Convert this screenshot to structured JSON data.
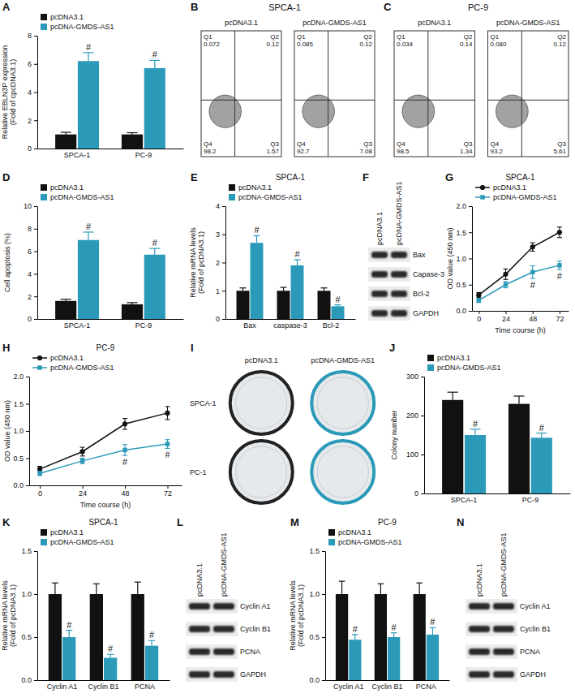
{
  "chart_data": [
    {
      "panel_label": "A",
      "type": "bar",
      "y_label": [
        "Relative EBLN3P expression",
        "(Fold of cpcDNA3.1)"
      ],
      "categories": [
        "SPCA-1",
        "PC-9"
      ],
      "series": [
        {
          "name": "pcDNA3.1",
          "color": "#111111",
          "values": [
            1.0,
            1.0
          ],
          "errors": [
            0.15,
            0.12
          ]
        },
        {
          "name": "pcDNA-GMDS-AS1",
          "color": "#2b9ab8",
          "values": [
            6.2,
            5.7
          ],
          "errors": [
            0.6,
            0.55
          ],
          "annotations": [
            "#",
            "#"
          ]
        }
      ],
      "ylim": [
        0,
        8
      ],
      "yticks": [
        0,
        2,
        4,
        6,
        8
      ],
      "legend": "top"
    },
    {
      "panel_label": "B",
      "type": "flow_cytometry",
      "title": "SPCA-1",
      "plots": [
        {
          "title": "pcDNA3.1",
          "quadrants": [
            {
              "name": "Q1",
              "value": 0.072
            },
            {
              "name": "Q2",
              "value": 0.12
            },
            {
              "name": "Q3",
              "value": 1.57
            },
            {
              "name": "Q4",
              "value": 98.2
            }
          ]
        },
        {
          "title": "pcDNA-GMDS-AS1",
          "quadrants": [
            {
              "name": "Q1",
              "value": 0.085
            },
            {
              "name": "Q2",
              "value": 0.12
            },
            {
              "name": "Q3",
              "value": 7.08
            },
            {
              "name": "Q4",
              "value": 92.7
            }
          ]
        }
      ]
    },
    {
      "panel_label": "C",
      "type": "flow_cytometry",
      "title": "PC-9",
      "plots": [
        {
          "title": "pcDNA3.1",
          "quadrants": [
            {
              "name": "Q1",
              "value": 0.034
            },
            {
              "name": "Q2",
              "value": 0.14
            },
            {
              "name": "Q3",
              "value": 1.34
            },
            {
              "name": "Q4",
              "value": 98.5
            }
          ]
        },
        {
          "title": "pcDNA-GMDS-AS1",
          "quadrants": [
            {
              "name": "Q1",
              "value": 0.08,
              "label": "0.080"
            },
            {
              "name": "Q2",
              "value": 0.12
            },
            {
              "name": "Q3",
              "value": 5.61
            },
            {
              "name": "Q4",
              "value": 93.2
            }
          ]
        }
      ]
    },
    {
      "panel_label": "D",
      "type": "bar",
      "y_label": [
        "Cell apoptosis (%)"
      ],
      "categories": [
        "SPCA-1",
        "PC-9"
      ],
      "series": [
        {
          "name": "pcDNA3.1",
          "color": "#111111",
          "values": [
            1.6,
            1.3
          ],
          "errors": [
            0.15,
            0.15
          ]
        },
        {
          "name": "pcDNA-GMDS-AS1",
          "color": "#2b9ab8",
          "values": [
            7.0,
            5.7
          ],
          "errors": [
            0.7,
            0.55
          ],
          "annotations": [
            "#",
            "#"
          ]
        }
      ],
      "ylim": [
        0,
        10
      ],
      "yticks": [
        0,
        2,
        4,
        6,
        8,
        10
      ],
      "legend": "top"
    },
    {
      "panel_label": "E",
      "type": "bar",
      "title": "SPCA-1",
      "y_label": [
        "Relative mRNA levels",
        "(Fold of pcDNA3.1)"
      ],
      "categories": [
        "Bax",
        "caspase-3",
        "Bcl-2"
      ],
      "series": [
        {
          "name": "pcDNA3.1",
          "color": "#111111",
          "values": [
            1.0,
            1.0,
            1.0
          ],
          "errors": [
            0.1,
            0.12,
            0.1
          ]
        },
        {
          "name": "pcDNA-GMDS-AS1",
          "color": "#2b9ab8",
          "values": [
            2.7,
            1.9,
            0.45
          ],
          "errors": [
            0.25,
            0.2,
            0.05
          ],
          "annotations": [
            "#",
            "#",
            "#"
          ]
        }
      ],
      "ylim": [
        0,
        4
      ],
      "yticks": [
        0,
        1,
        2,
        3,
        4
      ],
      "legend": "top"
    },
    {
      "panel_label": "F",
      "type": "blot",
      "lanes": [
        "pcDNA3.1",
        "pcDNA-GMDS-AS1"
      ],
      "rows": [
        "Bax",
        "Capase-3",
        "Bcl-2",
        "GAPDH"
      ]
    },
    {
      "panel_label": "G",
      "type": "line",
      "title": "SPCA-1",
      "x_label": "Time course (h)",
      "y_label": "OD value (450 nm)",
      "x": [
        0,
        24,
        48,
        72
      ],
      "xlim": [
        -6,
        80
      ],
      "xticks": [
        0,
        24,
        48,
        72
      ],
      "ylim": [
        0,
        2
      ],
      "yticks": [
        {
          "value": 0,
          "label": "0.0"
        },
        {
          "value": 0.5,
          "label": "0.5"
        },
        {
          "value": 1,
          "label": "1.0"
        },
        {
          "value": 1.5,
          "label": "1.5"
        },
        {
          "value": 2,
          "label": "2.0"
        }
      ],
      "legend": "top",
      "series": [
        {
          "name": "pcDNA3.1",
          "color": "#111111",
          "marker": "circle",
          "line_style": "solid",
          "values": [
            0.3,
            0.7,
            1.22,
            1.5
          ],
          "errors": [
            0.05,
            0.1,
            0.08,
            0.1
          ]
        },
        {
          "name": "pcDNA-GMDS-AS1",
          "color": "#2b9ab8",
          "marker": "square",
          "line_style": "solid",
          "values": [
            0.2,
            0.5,
            0.74,
            0.87
          ],
          "errors": [
            0.04,
            0.06,
            0.12,
            0.08
          ],
          "annotations": [
            null,
            null,
            "#",
            "#"
          ]
        }
      ]
    },
    {
      "panel_label": "H",
      "type": "line",
      "title": "PC-9",
      "x_label": "Time course (h)",
      "y_label": "OD value (450 nm)",
      "x": [
        0,
        24,
        48,
        72
      ],
      "xlim": [
        -6,
        80
      ],
      "xticks": [
        0,
        24,
        48,
        72
      ],
      "ylim": [
        0,
        2
      ],
      "yticks": [
        {
          "value": 0,
          "label": "0.0"
        },
        {
          "value": 0.5,
          "label": "0.5"
        },
        {
          "value": 1,
          "label": "1.0"
        },
        {
          "value": 1.5,
          "label": "1.5"
        },
        {
          "value": 2,
          "label": "2.0"
        }
      ],
      "legend": "top",
      "series": [
        {
          "name": "pcDNA3.1",
          "color": "#111111",
          "marker": "circle",
          "line_style": "solid",
          "values": [
            0.3,
            0.62,
            1.13,
            1.33
          ],
          "errors": [
            0.05,
            0.08,
            0.1,
            0.12
          ]
        },
        {
          "name": "pcDNA-GMDS-AS1",
          "color": "#2b9ab8",
          "marker": "square",
          "line_style": "solid",
          "values": [
            0.22,
            0.45,
            0.65,
            0.76
          ],
          "errors": [
            0.04,
            0.05,
            0.1,
            0.08
          ],
          "annotations": [
            null,
            null,
            "#",
            "#"
          ]
        }
      ]
    },
    {
      "panel_label": "I",
      "type": "image",
      "columns": [
        "pcDNA3.1",
        "pcDNA-GMDS-AS1"
      ],
      "rows": [
        "SPCA-1",
        "PC-1"
      ]
    },
    {
      "panel_label": "J",
      "type": "bar",
      "y_label": [
        "Colony number"
      ],
      "categories": [
        "SPCA-1",
        "PC-9"
      ],
      "series": [
        {
          "name": "pcDNA3.1",
          "color": "#111111",
          "values": [
            240,
            230
          ],
          "errors": [
            20,
            20
          ]
        },
        {
          "name": "pcDNA-GMDS-AS1",
          "color": "#2b9ab8",
          "values": [
            150,
            143
          ],
          "errors": [
            15,
            12
          ],
          "annotations": [
            "#",
            "#"
          ]
        }
      ],
      "ylim": [
        0,
        300
      ],
      "yticks": [
        0,
        100,
        200,
        300
      ],
      "legend": "top"
    },
    {
      "panel_label": "K",
      "type": "bar",
      "title": "SPCA-1",
      "y_label": [
        "Relative mRNA levels",
        "(Fold of pcDNA3.1)"
      ],
      "categories": [
        "Cyclin A1",
        "Cyclin B1",
        "PCNA"
      ],
      "series": [
        {
          "name": "pcDNA3.1",
          "color": "#111111",
          "values": [
            1.0,
            1.0,
            1.0
          ],
          "errors": [
            0.13,
            0.12,
            0.14
          ]
        },
        {
          "name": "pcDNA-GMDS-AS1",
          "color": "#2b9ab8",
          "values": [
            0.5,
            0.26,
            0.4
          ],
          "errors": [
            0.08,
            0.04,
            0.06
          ],
          "annotations": [
            "#",
            "#",
            "#"
          ]
        }
      ],
      "ylim": [
        0,
        1.5
      ],
      "yticks": [
        {
          "value": 0,
          "label": "0.0"
        },
        {
          "value": 0.5,
          "label": "0.5"
        },
        {
          "value": 1,
          "label": "1.0"
        },
        {
          "value": 1.5,
          "label": "1.5"
        }
      ],
      "legend": "top"
    },
    {
      "panel_label": "L",
      "type": "blot",
      "lanes": [
        "pcDNA3.1",
        "pcDNA-GMDS-AS1"
      ],
      "rows": [
        "Cyclin A1",
        "Cyclin B1",
        "PCNA",
        "GAPDH"
      ]
    },
    {
      "panel_label": "M",
      "type": "bar",
      "title": "PC-9",
      "y_label": [
        "Relative mRNA levels",
        "(Fold of pcDNA3.1)"
      ],
      "categories": [
        "Cyclin A1",
        "Cyclin B1",
        "PCNA"
      ],
      "series": [
        {
          "name": "pcDNA3.1",
          "color": "#111111",
          "values": [
            1.0,
            1.0,
            1.0
          ],
          "errors": [
            0.15,
            0.12,
            0.13
          ]
        },
        {
          "name": "pcDNA-GMDS-AS1",
          "color": "#2b9ab8",
          "values": [
            0.47,
            0.5,
            0.53
          ],
          "errors": [
            0.06,
            0.05,
            0.08
          ],
          "annotations": [
            "#",
            "#",
            "#"
          ]
        }
      ],
      "ylim": [
        0,
        1.5
      ],
      "yticks": [
        {
          "value": 0,
          "label": "0.0"
        },
        {
          "value": 0.5,
          "label": "0.5"
        },
        {
          "value": 1,
          "label": "1.0"
        },
        {
          "value": 1.5,
          "label": "1.5"
        }
      ],
      "legend": "top"
    },
    {
      "panel_label": "N",
      "type": "blot",
      "lanes": [
        "pcDNA3.1",
        "pcDNA-GMDS-AS1"
      ],
      "rows": [
        "Cyclin A1",
        "Cyclin B1",
        "PCNA",
        "GAPDH"
      ]
    }
  ]
}
